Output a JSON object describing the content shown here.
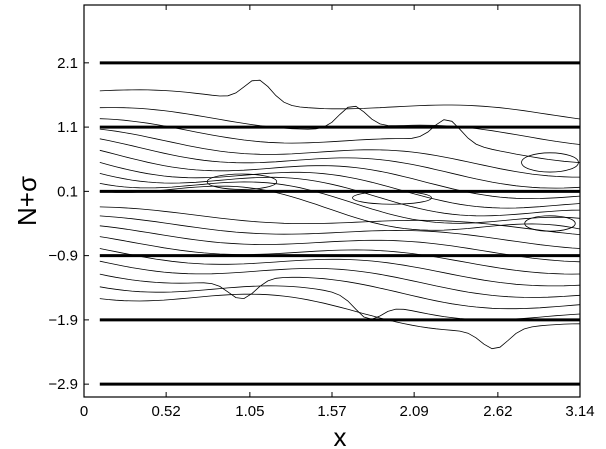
{
  "chart_data": {
    "type": "line",
    "title": "",
    "xlabel": "x",
    "ylabel": "N+σ",
    "xlim": [
      0,
      3.14
    ],
    "ylim": [
      -3.1,
      3.0
    ],
    "x_ticks": [
      0,
      0.52,
      1.05,
      1.57,
      2.09,
      2.62,
      3.14
    ],
    "x_tick_labels": [
      "0",
      "0.52",
      "1.05",
      "1.57",
      "2.09",
      "2.62",
      "3.14"
    ],
    "y_ticks": [
      2.1,
      1.1,
      0.1,
      -0.9,
      -1.9,
      -2.9
    ],
    "y_tick_labels": [
      "2.1",
      "1.1",
      "0.1",
      "−0.9",
      "−1.9",
      "−2.9"
    ],
    "horizontal_levels": [
      2.1,
      1.1,
      0.1,
      -0.9,
      -1.9,
      -2.9
    ],
    "horizontal_level_xrange": [
      0.1,
      3.14
    ],
    "contour_plot": true,
    "grid": false,
    "legend": "none"
  }
}
